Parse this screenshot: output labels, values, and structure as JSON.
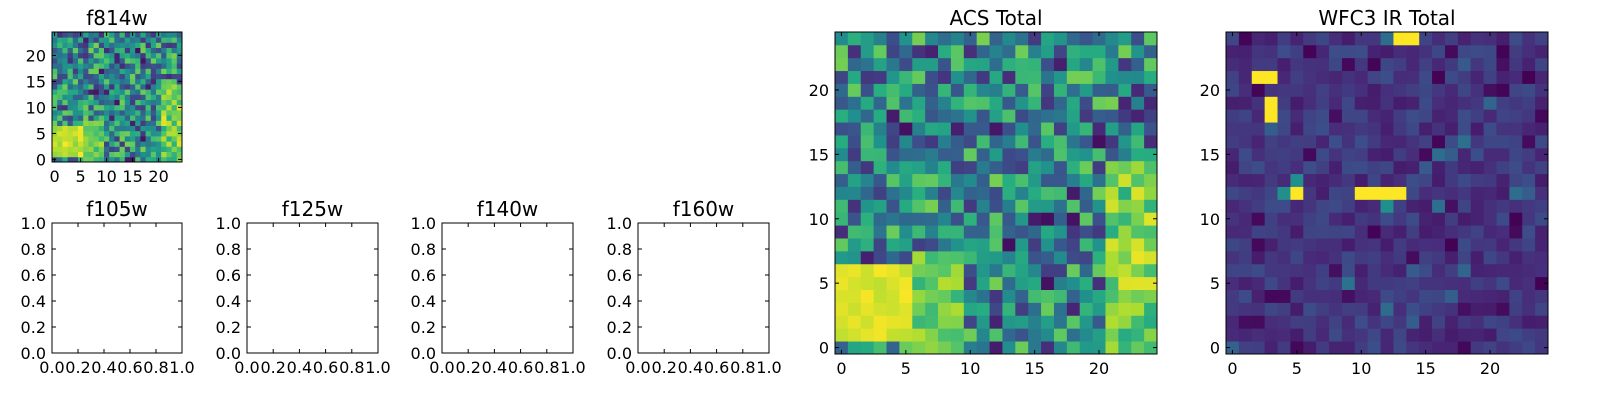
{
  "chart_data": [
    {
      "type": "heatmap",
      "title": "f814w",
      "grid_size": [
        25,
        25
      ],
      "xlim": [
        -0.5,
        24.5
      ],
      "ylim": [
        -0.5,
        24.5
      ],
      "xticks": [
        0,
        5,
        10,
        15,
        20
      ],
      "yticks": [
        0,
        5,
        10,
        15,
        20
      ],
      "colormap": "viridis",
      "pattern": "mostly green-teal field with bright yellow-green band at rows 2-7 on the left and right edges",
      "grid": false
    },
    {
      "type": "empty",
      "title": "f105w",
      "xlim": [
        0.0,
        1.0
      ],
      "ylim": [
        0.0,
        1.0
      ],
      "xticks": [
        "0.0",
        "0.2",
        "0.4",
        "0.6",
        "0.8",
        "1.0"
      ],
      "yticks": [
        "0.0",
        "0.2",
        "0.4",
        "0.6",
        "0.8",
        "1.0"
      ]
    },
    {
      "type": "empty",
      "title": "f125w",
      "xlim": [
        0.0,
        1.0
      ],
      "ylim": [
        0.0,
        1.0
      ],
      "xticks": [
        "0.0",
        "0.2",
        "0.4",
        "0.6",
        "0.8",
        "1.0"
      ],
      "yticks": [
        "0.0",
        "0.2",
        "0.4",
        "0.6",
        "0.8",
        "1.0"
      ]
    },
    {
      "type": "empty",
      "title": "f140w",
      "xlim": [
        0.0,
        1.0
      ],
      "ylim": [
        0.0,
        1.0
      ],
      "xticks": [
        "0.0",
        "0.2",
        "0.4",
        "0.6",
        "0.8",
        "1.0"
      ],
      "yticks": [
        "0.0",
        "0.2",
        "0.4",
        "0.6",
        "0.8",
        "1.0"
      ]
    },
    {
      "type": "empty",
      "title": "f160w",
      "xlim": [
        0.0,
        1.0
      ],
      "ylim": [
        0.0,
        1.0
      ],
      "xticks": [
        "0.0",
        "0.2",
        "0.4",
        "0.6",
        "0.8",
        "1.0"
      ],
      "yticks": [
        "0.0",
        "0.2",
        "0.4",
        "0.6",
        "0.8",
        "1.0"
      ]
    },
    {
      "type": "heatmap",
      "title": "ACS Total",
      "grid_size": [
        25,
        25
      ],
      "xlim": [
        -0.5,
        24.5
      ],
      "ylim": [
        -0.5,
        24.5
      ],
      "xticks": [
        0,
        5,
        10,
        15,
        20
      ],
      "yticks": [
        0,
        5,
        10,
        15,
        20
      ],
      "colormap": "viridis",
      "pattern": "mostly green-teal noisy field, bright yellow block at bottom-left rows 1-6 cols 0-4, yellow-green band along right edge",
      "grid": false
    },
    {
      "type": "heatmap",
      "title": "WFC3 IR Total",
      "grid_size": [
        25,
        25
      ],
      "xlim": [
        -0.5,
        24.5
      ],
      "ylim": [
        -0.5,
        24.5
      ],
      "xticks": [
        0,
        5,
        10,
        15,
        20
      ],
      "yticks": [
        0,
        5,
        10,
        15,
        20
      ],
      "colormap": "viridis",
      "pattern": "dark blue-purple background with sparse bright yellow hot pixels",
      "bright_pixels": [
        {
          "x": 13,
          "y": 24
        },
        {
          "x": 14,
          "y": 24
        },
        {
          "x": 2,
          "y": 21
        },
        {
          "x": 3,
          "y": 21
        },
        {
          "x": 3,
          "y": 19
        },
        {
          "x": 3,
          "y": 18
        },
        {
          "x": 5,
          "y": 12
        },
        {
          "x": 10,
          "y": 12
        },
        {
          "x": 11,
          "y": 12
        },
        {
          "x": 12,
          "y": 12
        },
        {
          "x": 13,
          "y": 12
        }
      ],
      "grid": false
    }
  ]
}
